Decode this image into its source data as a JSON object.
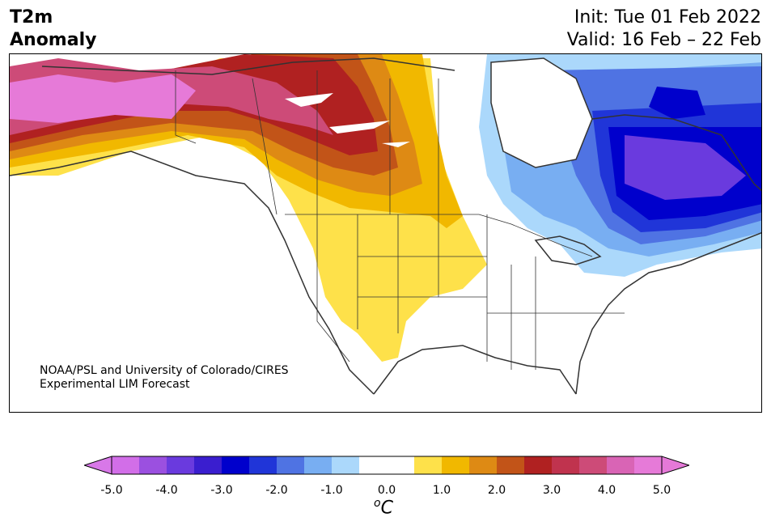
{
  "title": {
    "line1": "T2m",
    "line2": "Anomaly"
  },
  "subtitle": {
    "init": "Init: Tue 01 Feb 2022",
    "valid": "Valid: 16 Feb – 22 Feb"
  },
  "credit": {
    "line1": "NOAA/PSL and University of Colorado/CIRES",
    "line2": "Experimental LIM Forecast"
  },
  "colorbar": {
    "unit_sup": "o",
    "unit": "C",
    "min": -5.0,
    "max": 5.0,
    "ticks": [
      "-5.0",
      "-4.0",
      "-3.0",
      "-2.0",
      "-1.0",
      "0.0",
      "1.0",
      "2.0",
      "3.0",
      "4.0",
      "5.0"
    ],
    "colors": [
      "#d26ee8",
      "#9b50e0",
      "#6a3ade",
      "#3a1ecf",
      "#0000cc",
      "#2035d8",
      "#4f73e3",
      "#78aef2",
      "#abd8fb",
      "#ffffff",
      "#ffffff",
      "#fee14a",
      "#f1b800",
      "#de8a14",
      "#c25418",
      "#b02121",
      "#c0334e",
      "#cd4b78",
      "#d964b5",
      "#e67ad8"
    ],
    "under_color": "#d878e8",
    "over_color": "#e579d8"
  },
  "map": {
    "region": "North America",
    "variable": "2m temperature anomaly",
    "colors": {
      "ocean": "#ffffff",
      "coast": "#333333",
      "warm_pink": "#e67ad8",
      "warm_rose": "#cd4b78",
      "warm_red": "#b02121",
      "warm_orange_red": "#c25418",
      "warm_orange": "#de8a14",
      "warm_gold": "#f1b800",
      "warm_yellow": "#fee14a",
      "cool_pale": "#abd8fb",
      "cool_light": "#78aef2",
      "cool_mid": "#4f73e3",
      "cool_blue": "#2035d8",
      "cool_deep": "#0000cc",
      "cool_purple": "#6a3ade"
    }
  }
}
